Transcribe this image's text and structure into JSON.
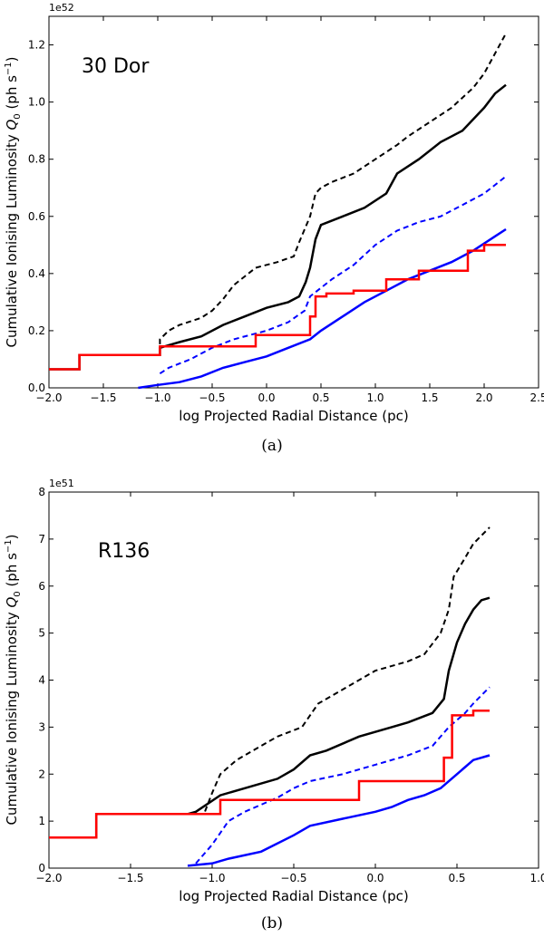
{
  "chart_data": [
    {
      "type": "line",
      "panel_label": "(a)",
      "annotation": "30 Dor",
      "xlabel": "log Projected Radial Distance (pc)",
      "ylabel": "Cumulative Ionising Luminosity Q₀ (ph s⁻¹)",
      "ylabel_parts": {
        "main": "Cumulative Ionising Luminosity ",
        "q": "Q",
        "sub": "0",
        "units": " (ph s",
        "sup": "−1",
        "close": ")"
      },
      "offset_text": "1e52",
      "xlim": [
        -2.0,
        2.5
      ],
      "ylim": [
        0.0,
        1.3
      ],
      "xticks": [
        -2.0,
        -1.5,
        -1.0,
        -0.5,
        0.0,
        0.5,
        1.0,
        1.5,
        2.0,
        2.5
      ],
      "xtick_labels": [
        "−2.0",
        "−1.5",
        "−1.0",
        "−0.5",
        "0.0",
        "0.5",
        "1.0",
        "1.5",
        "2.0",
        "2.5"
      ],
      "yticks": [
        0.0,
        0.2,
        0.4,
        0.6,
        0.8,
        1.0,
        1.2
      ],
      "ytick_labels": [
        "0.0",
        "0.2",
        "0.4",
        "0.6",
        "0.8",
        "1.0",
        "1.2"
      ],
      "series": [
        {
          "name": "black-dashed",
          "color": "#000000",
          "dash": "6,4",
          "width": 2,
          "points": [
            [
              -2.0,
              0.065
            ],
            [
              -1.72,
              0.065
            ],
            [
              -1.72,
              0.115
            ],
            [
              -0.98,
              0.115
            ],
            [
              -0.98,
              0.17
            ],
            [
              -0.9,
              0.2
            ],
            [
              -0.8,
              0.22
            ],
            [
              -0.6,
              0.245
            ],
            [
              -0.5,
              0.27
            ],
            [
              -0.4,
              0.31
            ],
            [
              -0.3,
              0.36
            ],
            [
              -0.2,
              0.39
            ],
            [
              -0.1,
              0.42
            ],
            [
              0.1,
              0.44
            ],
            [
              0.25,
              0.46
            ],
            [
              0.3,
              0.51
            ],
            [
              0.4,
              0.6
            ],
            [
              0.45,
              0.68
            ],
            [
              0.5,
              0.7
            ],
            [
              0.6,
              0.72
            ],
            [
              0.8,
              0.75
            ],
            [
              1.0,
              0.8
            ],
            [
              1.2,
              0.85
            ],
            [
              1.3,
              0.88
            ],
            [
              1.5,
              0.93
            ],
            [
              1.7,
              0.98
            ],
            [
              1.9,
              1.05
            ],
            [
              2.0,
              1.1
            ],
            [
              2.1,
              1.17
            ],
            [
              2.2,
              1.24
            ]
          ]
        },
        {
          "name": "black-solid",
          "color": "#000000",
          "dash": "",
          "width": 2.5,
          "points": [
            [
              -2.0,
              0.065
            ],
            [
              -1.72,
              0.065
            ],
            [
              -1.72,
              0.115
            ],
            [
              -0.98,
              0.115
            ],
            [
              -0.98,
              0.14
            ],
            [
              -0.8,
              0.16
            ],
            [
              -0.6,
              0.18
            ],
            [
              -0.4,
              0.22
            ],
            [
              -0.2,
              0.25
            ],
            [
              0.0,
              0.28
            ],
            [
              0.2,
              0.3
            ],
            [
              0.3,
              0.32
            ],
            [
              0.36,
              0.37
            ],
            [
              0.4,
              0.42
            ],
            [
              0.45,
              0.52
            ],
            [
              0.5,
              0.57
            ],
            [
              0.7,
              0.6
            ],
            [
              0.9,
              0.63
            ],
            [
              1.1,
              0.68
            ],
            [
              1.2,
              0.75
            ],
            [
              1.4,
              0.8
            ],
            [
              1.6,
              0.86
            ],
            [
              1.8,
              0.9
            ],
            [
              2.0,
              0.98
            ],
            [
              2.1,
              1.03
            ],
            [
              2.2,
              1.06
            ]
          ]
        },
        {
          "name": "blue-dashed",
          "color": "#0000ff",
          "dash": "6,4",
          "width": 2,
          "points": [
            [
              -0.98,
              0.05
            ],
            [
              -0.9,
              0.07
            ],
            [
              -0.7,
              0.1
            ],
            [
              -0.5,
              0.14
            ],
            [
              -0.3,
              0.17
            ],
            [
              0.0,
              0.2
            ],
            [
              0.2,
              0.23
            ],
            [
              0.35,
              0.27
            ],
            [
              0.4,
              0.32
            ],
            [
              0.6,
              0.38
            ],
            [
              0.8,
              0.43
            ],
            [
              1.0,
              0.5
            ],
            [
              1.2,
              0.55
            ],
            [
              1.4,
              0.58
            ],
            [
              1.6,
              0.6
            ],
            [
              1.8,
              0.64
            ],
            [
              2.0,
              0.68
            ],
            [
              2.1,
              0.71
            ],
            [
              2.2,
              0.74
            ]
          ]
        },
        {
          "name": "blue-solid",
          "color": "#0000ff",
          "dash": "",
          "width": 2.5,
          "points": [
            [
              -1.18,
              0.0
            ],
            [
              -1.0,
              0.01
            ],
            [
              -0.8,
              0.02
            ],
            [
              -0.6,
              0.04
            ],
            [
              -0.4,
              0.07
            ],
            [
              -0.2,
              0.09
            ],
            [
              0.0,
              0.11
            ],
            [
              0.2,
              0.14
            ],
            [
              0.4,
              0.17
            ],
            [
              0.5,
              0.2
            ],
            [
              0.7,
              0.25
            ],
            [
              0.9,
              0.3
            ],
            [
              1.1,
              0.34
            ],
            [
              1.3,
              0.38
            ],
            [
              1.5,
              0.41
            ],
            [
              1.7,
              0.44
            ],
            [
              1.9,
              0.48
            ],
            [
              2.1,
              0.53
            ],
            [
              2.2,
              0.555
            ]
          ]
        },
        {
          "name": "red-solid",
          "color": "#ff0000",
          "dash": "",
          "width": 2.5,
          "points": [
            [
              -2.0,
              0.065
            ],
            [
              -1.72,
              0.065
            ],
            [
              -1.72,
              0.115
            ],
            [
              -0.98,
              0.115
            ],
            [
              -0.98,
              0.145
            ],
            [
              -0.1,
              0.145
            ],
            [
              -0.1,
              0.185
            ],
            [
              0.4,
              0.185
            ],
            [
              0.4,
              0.25
            ],
            [
              0.45,
              0.25
            ],
            [
              0.45,
              0.32
            ],
            [
              0.55,
              0.32
            ],
            [
              0.55,
              0.33
            ],
            [
              0.8,
              0.33
            ],
            [
              0.8,
              0.34
            ],
            [
              1.1,
              0.34
            ],
            [
              1.1,
              0.38
            ],
            [
              1.4,
              0.38
            ],
            [
              1.4,
              0.41
            ],
            [
              1.85,
              0.41
            ],
            [
              1.85,
              0.48
            ],
            [
              2.0,
              0.48
            ],
            [
              2.0,
              0.5
            ],
            [
              2.2,
              0.5
            ]
          ]
        }
      ]
    },
    {
      "type": "line",
      "panel_label": "(b)",
      "annotation": "R136",
      "xlabel": "log Projected Radial Distance (pc)",
      "ylabel": "Cumulative Ionising Luminosity Q₀ (ph s⁻¹)",
      "ylabel_parts": {
        "main": "Cumulative Ionising Luminosity ",
        "q": "Q",
        "sub": "0",
        "units": " (ph s",
        "sup": "−1",
        "close": ")"
      },
      "offset_text": "1e51",
      "xlim": [
        -2.0,
        1.0
      ],
      "ylim": [
        0,
        8
      ],
      "xticks": [
        -2.0,
        -1.5,
        -1.0,
        -0.5,
        0.0,
        0.5,
        1.0
      ],
      "xtick_labels": [
        "−2.0",
        "−1.5",
        "−1.0",
        "−0.5",
        "0.0",
        "0.5",
        "1.0"
      ],
      "yticks": [
        0,
        1,
        2,
        3,
        4,
        5,
        6,
        7,
        8
      ],
      "ytick_labels": [
        "0",
        "1",
        "2",
        "3",
        "4",
        "5",
        "6",
        "7",
        "8"
      ],
      "series": [
        {
          "name": "black-dashed",
          "color": "#000000",
          "dash": "6,4",
          "width": 2,
          "points": [
            [
              -2.0,
              0.65
            ],
            [
              -1.71,
              0.65
            ],
            [
              -1.71,
              1.15
            ],
            [
              -1.05,
              1.15
            ],
            [
              -1.0,
              1.6
            ],
            [
              -0.95,
              2.0
            ],
            [
              -0.85,
              2.3
            ],
            [
              -0.7,
              2.6
            ],
            [
              -0.6,
              2.8
            ],
            [
              -0.45,
              3.0
            ],
            [
              -0.35,
              3.5
            ],
            [
              -0.2,
              3.8
            ],
            [
              0.0,
              4.2
            ],
            [
              0.2,
              4.4
            ],
            [
              0.3,
              4.55
            ],
            [
              0.4,
              5.0
            ],
            [
              0.45,
              5.5
            ],
            [
              0.48,
              6.2
            ],
            [
              0.55,
              6.6
            ],
            [
              0.6,
              6.9
            ],
            [
              0.7,
              7.25
            ]
          ]
        },
        {
          "name": "black-solid",
          "color": "#000000",
          "dash": "",
          "width": 2.5,
          "points": [
            [
              -2.0,
              0.65
            ],
            [
              -1.71,
              0.65
            ],
            [
              -1.71,
              1.15
            ],
            [
              -1.15,
              1.15
            ],
            [
              -1.1,
              1.2
            ],
            [
              -0.95,
              1.55
            ],
            [
              -0.8,
              1.7
            ],
            [
              -0.6,
              1.9
            ],
            [
              -0.5,
              2.1
            ],
            [
              -0.4,
              2.4
            ],
            [
              -0.3,
              2.5
            ],
            [
              -0.1,
              2.8
            ],
            [
              0.1,
              3.0
            ],
            [
              0.2,
              3.1
            ],
            [
              0.35,
              3.3
            ],
            [
              0.42,
              3.6
            ],
            [
              0.45,
              4.2
            ],
            [
              0.5,
              4.8
            ],
            [
              0.55,
              5.2
            ],
            [
              0.6,
              5.5
            ],
            [
              0.65,
              5.7
            ],
            [
              0.7,
              5.75
            ]
          ]
        },
        {
          "name": "blue-dashed",
          "color": "#0000ff",
          "dash": "6,4",
          "width": 2,
          "points": [
            [
              -1.1,
              0.1
            ],
            [
              -1.0,
              0.5
            ],
            [
              -0.9,
              1.0
            ],
            [
              -0.8,
              1.2
            ],
            [
              -0.6,
              1.5
            ],
            [
              -0.5,
              1.7
            ],
            [
              -0.4,
              1.85
            ],
            [
              -0.2,
              2.0
            ],
            [
              0.0,
              2.2
            ],
            [
              0.2,
              2.4
            ],
            [
              0.35,
              2.6
            ],
            [
              0.45,
              3.0
            ],
            [
              0.55,
              3.3
            ],
            [
              0.6,
              3.5
            ],
            [
              0.7,
              3.85
            ]
          ]
        },
        {
          "name": "blue-solid",
          "color": "#0000ff",
          "dash": "",
          "width": 2.5,
          "points": [
            [
              -1.15,
              0.05
            ],
            [
              -1.0,
              0.1
            ],
            [
              -0.9,
              0.2
            ],
            [
              -0.7,
              0.35
            ],
            [
              -0.5,
              0.7
            ],
            [
              -0.4,
              0.9
            ],
            [
              -0.2,
              1.05
            ],
            [
              0.0,
              1.2
            ],
            [
              0.1,
              1.3
            ],
            [
              0.2,
              1.45
            ],
            [
              0.3,
              1.55
            ],
            [
              0.4,
              1.7
            ],
            [
              0.5,
              2.0
            ],
            [
              0.55,
              2.15
            ],
            [
              0.6,
              2.3
            ],
            [
              0.7,
              2.4
            ]
          ]
        },
        {
          "name": "red-solid",
          "color": "#ff0000",
          "dash": "",
          "width": 2.5,
          "points": [
            [
              -2.0,
              0.65
            ],
            [
              -1.71,
              0.65
            ],
            [
              -1.71,
              1.15
            ],
            [
              -0.95,
              1.15
            ],
            [
              -0.95,
              1.45
            ],
            [
              -0.1,
              1.45
            ],
            [
              -0.1,
              1.85
            ],
            [
              0.42,
              1.85
            ],
            [
              0.42,
              2.35
            ],
            [
              0.47,
              2.35
            ],
            [
              0.47,
              3.25
            ],
            [
              0.6,
              3.25
            ],
            [
              0.6,
              3.35
            ],
            [
              0.7,
              3.35
            ]
          ]
        }
      ]
    }
  ]
}
